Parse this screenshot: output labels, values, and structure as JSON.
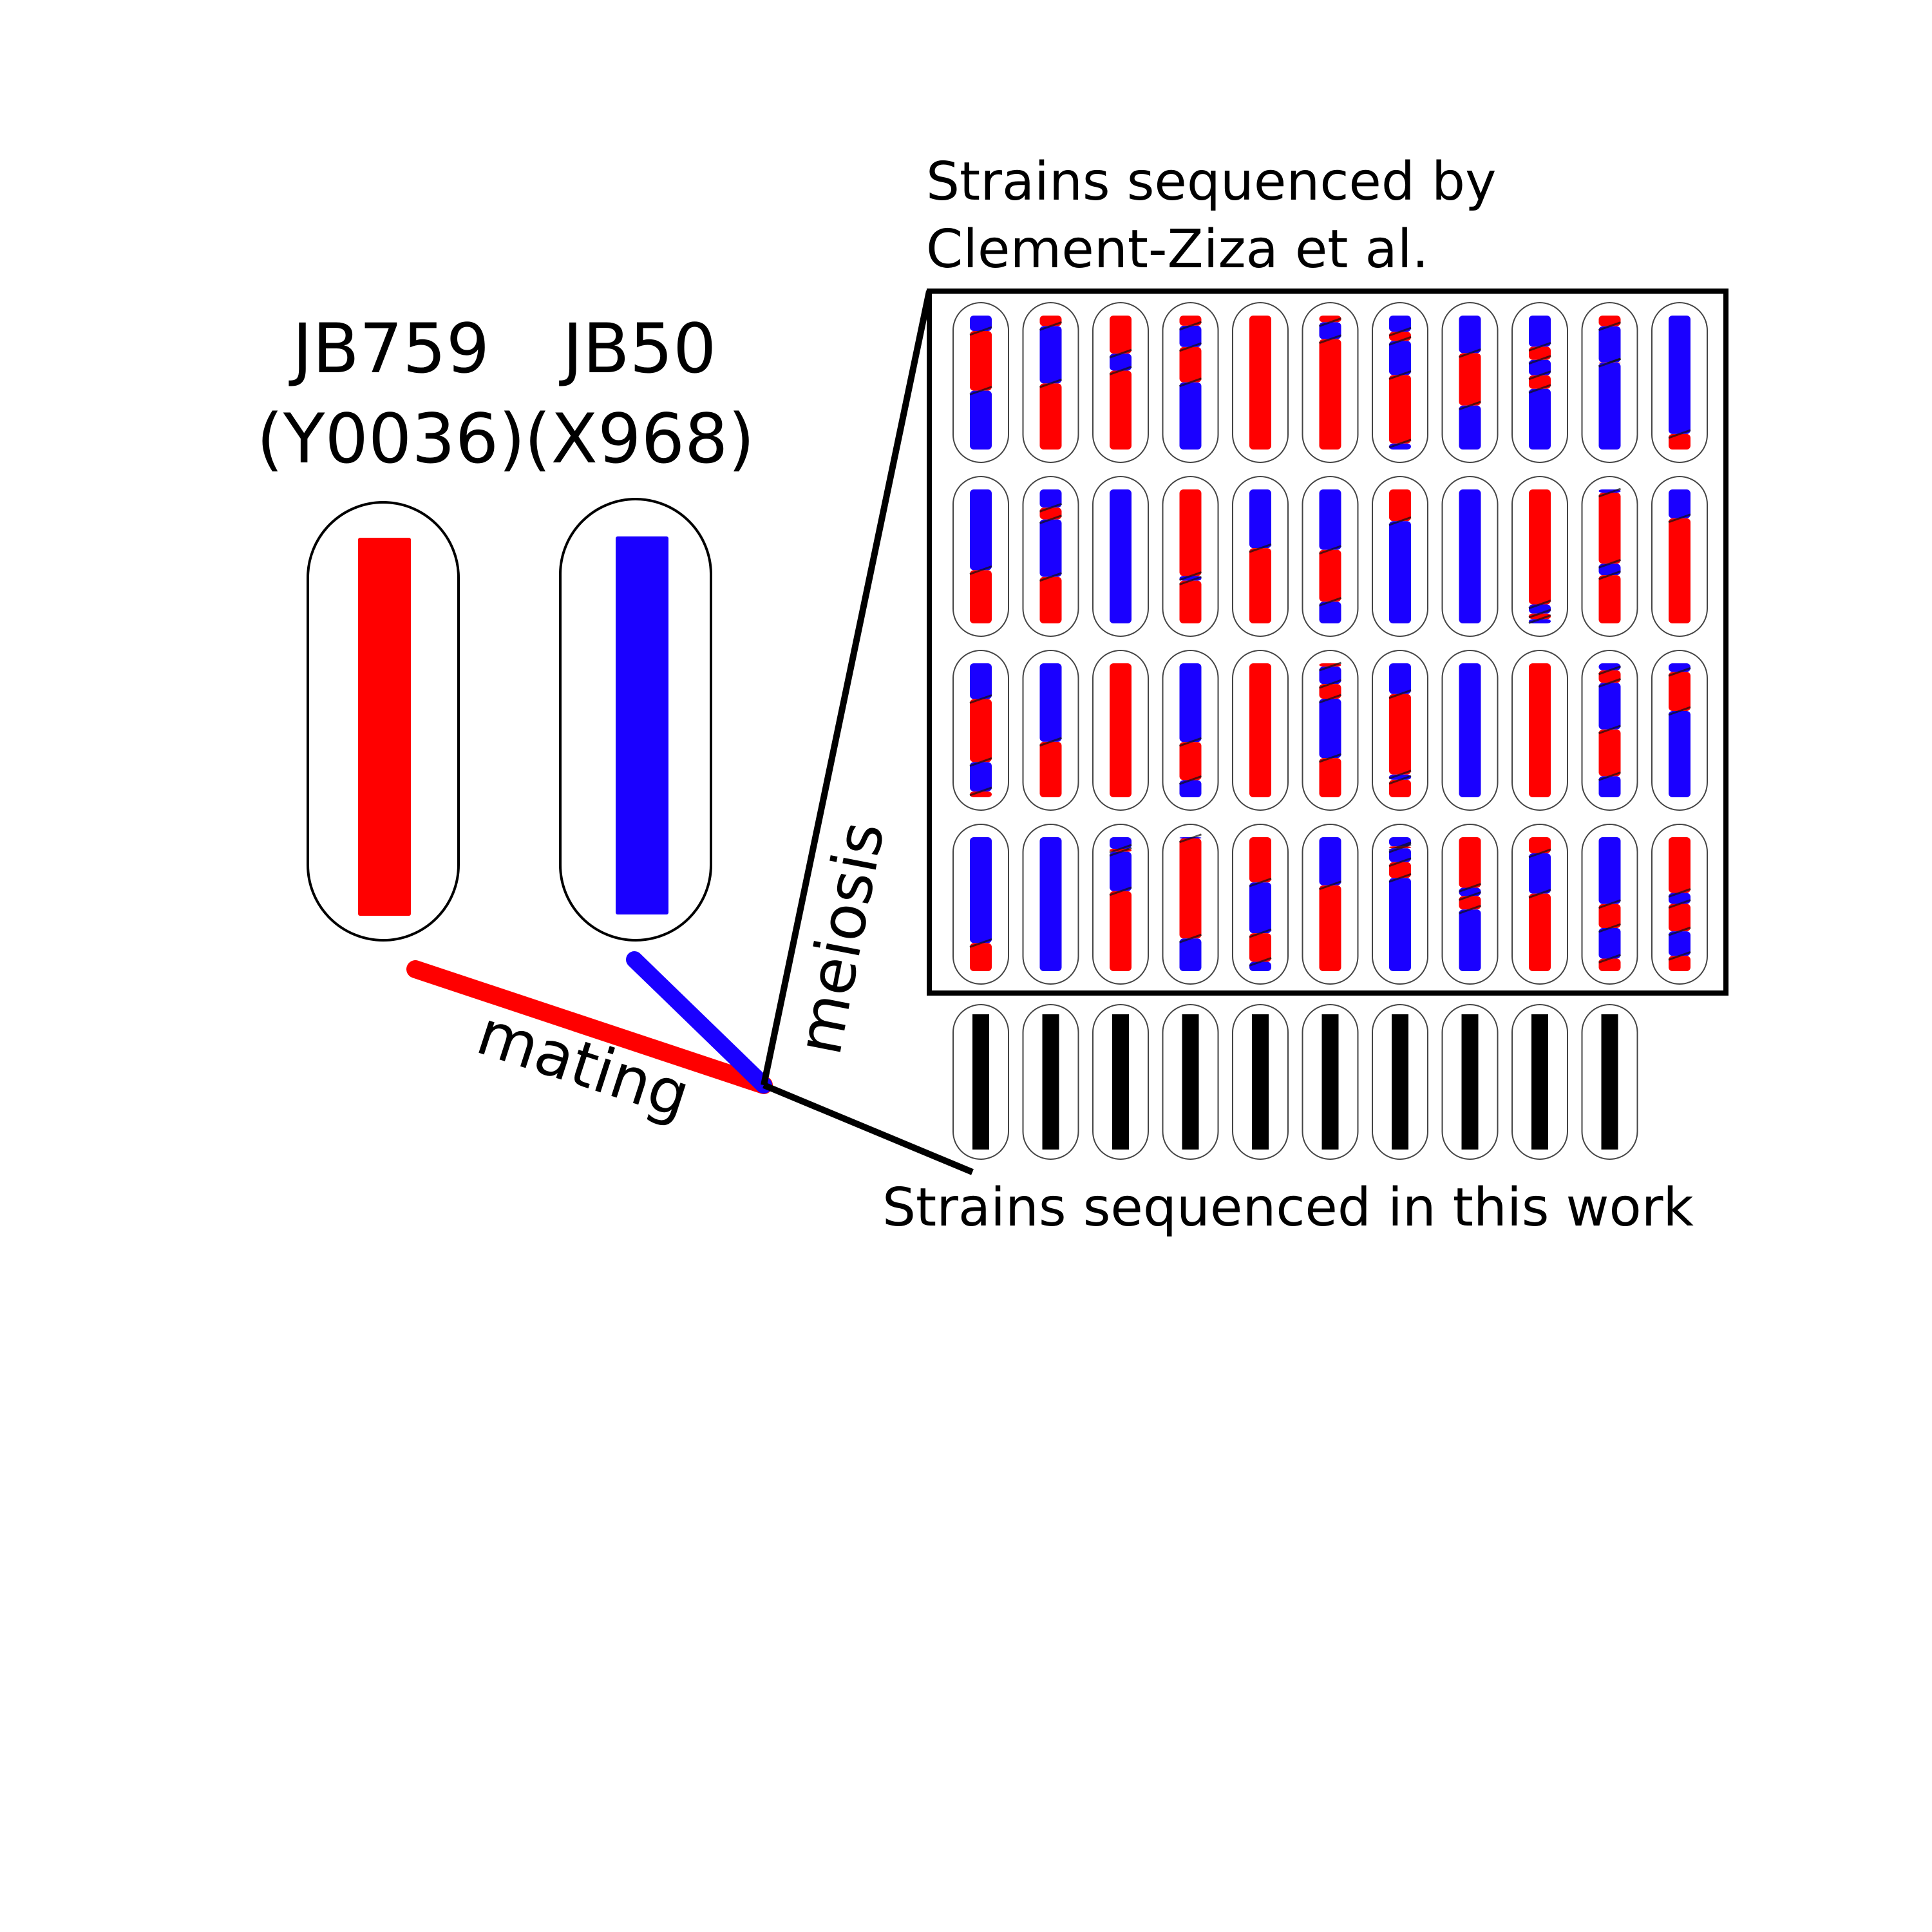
{
  "colors": {
    "parent_a": "#ff0000",
    "parent_b": "#1a00ff",
    "outline": "#000000",
    "new_strain": "#000000"
  },
  "parents": [
    {
      "name": "JB759",
      "alias": "(Y0036)",
      "chromosome_color": "red"
    },
    {
      "name": "JB50",
      "alias": "(X968)",
      "chromosome_color": "blue"
    }
  ],
  "labels": {
    "mating": "mating",
    "meiosis": "meiosis",
    "clement_line1": "Strains sequenced by",
    "clement_line2": "Clement-Ziza et al.",
    "this_work": "Strains sequenced in this work"
  },
  "grid": {
    "rows": 4,
    "cols": 11,
    "icons": [
      "segregant-chromosome-icon",
      "new-strain-chromosome-icon"
    ]
  },
  "new_strains_count": 10
}
